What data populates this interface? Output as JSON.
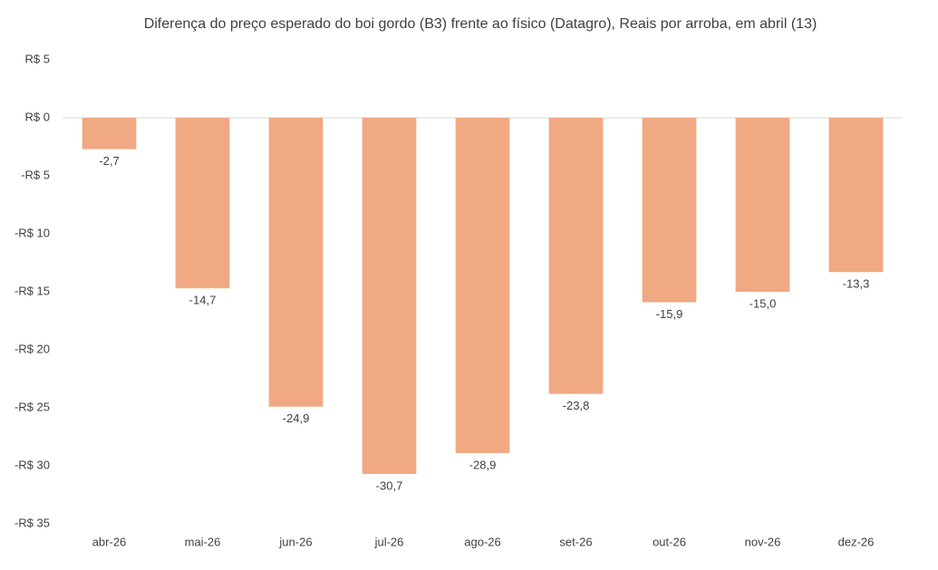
{
  "chart_data": {
    "type": "bar",
    "title": "Diferença do preço esperado do boi gordo (B3) frente ao físico (Datagro), Reais por arroba, em abril (13)",
    "categories": [
      "abr-26",
      "mai-26",
      "jun-26",
      "jul-26",
      "ago-26",
      "set-26",
      "out-26",
      "nov-26",
      "dez-26"
    ],
    "values": [
      -2.7,
      -14.7,
      -24.9,
      -30.7,
      -28.9,
      -23.8,
      -15.9,
      -15.0,
      -13.3
    ],
    "value_labels": [
      "-2,7",
      "-14,7",
      "-24,9",
      "-30,7",
      "-28,9",
      "-23,8",
      "-15,9",
      "-15,0",
      "-13,3"
    ],
    "color": "#f0a982",
    "ylim": [
      -35,
      5
    ],
    "yticks": [
      {
        "value": 5,
        "label": "R$ 5"
      },
      {
        "value": 0,
        "label": "R$ 0"
      },
      {
        "value": -5,
        "label": "-R$ 5"
      },
      {
        "value": -10,
        "label": "-R$ 10"
      },
      {
        "value": -15,
        "label": "-R$ 15"
      },
      {
        "value": -20,
        "label": "-R$ 20"
      },
      {
        "value": -25,
        "label": "-R$ 25"
      },
      {
        "value": -30,
        "label": "-R$ 30"
      },
      {
        "value": -35,
        "label": "-R$ 35"
      }
    ],
    "grid": false
  }
}
